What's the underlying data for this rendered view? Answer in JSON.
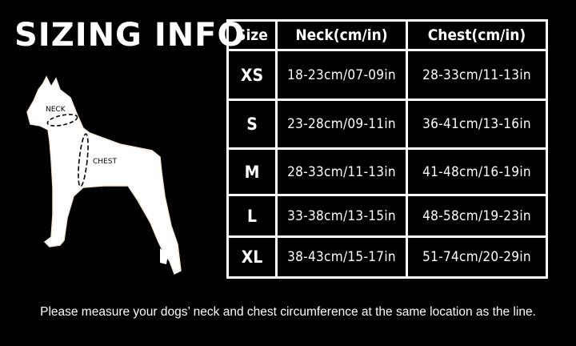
{
  "title": "SIZING INFO",
  "diagram": {
    "neck_label": "NECK",
    "chest_label": "CHEST"
  },
  "table": {
    "headers": [
      "Size",
      "Neck(cm/in)",
      "Chest(cm/in)"
    ],
    "rows": [
      {
        "size": "XS",
        "neck": "18-23cm/07-09in",
        "chest": "28-33cm/11-13in"
      },
      {
        "size": "S",
        "neck": "23-28cm/09-11in",
        "chest": "36-41cm/13-16in"
      },
      {
        "size": "M",
        "neck": "28-33cm/11-13in",
        "chest": "41-48cm/16-19in"
      },
      {
        "size": "L",
        "neck": "33-38cm/13-15in",
        "chest": "48-58cm/19-23in"
      },
      {
        "size": "XL",
        "neck": "38-43cm/15-17in",
        "chest": "51-74cm/20-29in"
      }
    ]
  },
  "note": "Please measure your dogs’  neck and chest circumference at the same location as the line.",
  "colors": {
    "background": "#000000",
    "foreground": "#ffffff"
  }
}
